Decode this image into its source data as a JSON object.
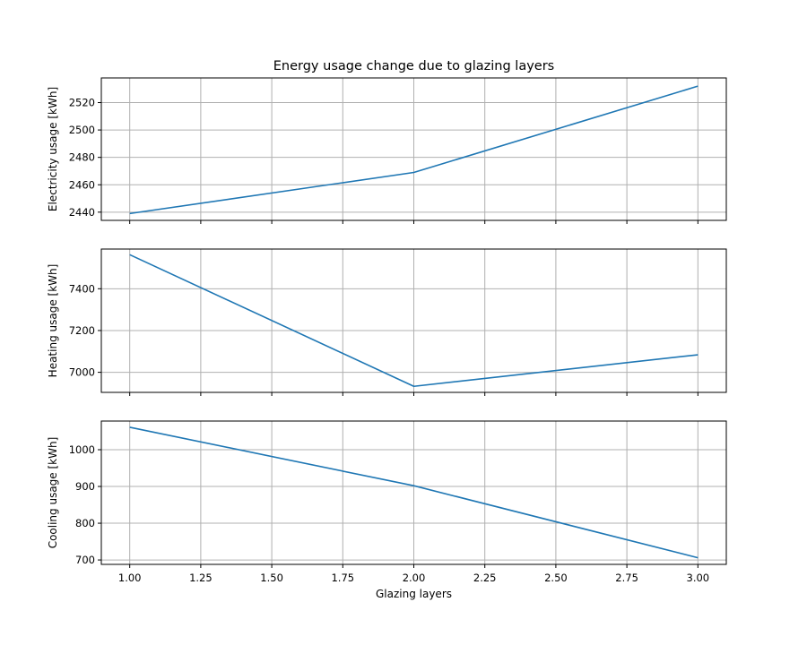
{
  "chart_data": [
    {
      "type": "line",
      "title": "Energy usage change due to glazing layers",
      "xlabel": "",
      "ylabel": "Electricity usage [kWh]",
      "x": [
        1.0,
        2.0,
        3.0
      ],
      "xlim": [
        0.9,
        3.1
      ],
      "xticks": [
        1.0,
        1.25,
        1.5,
        1.75,
        2.0,
        2.25,
        2.5,
        2.75,
        3.0
      ],
      "xtick_labels": [],
      "ylim": [
        2434,
        2538
      ],
      "yticks": [
        2440,
        2460,
        2480,
        2500,
        2520
      ],
      "ytick_labels": [
        "2440",
        "2460",
        "2480",
        "2500",
        "2520"
      ],
      "series": [
        {
          "values": [
            2439,
            2469,
            2532
          ],
          "color": "#1f77b4"
        }
      ],
      "grid": true
    },
    {
      "type": "line",
      "title": "",
      "xlabel": "",
      "ylabel": "Heating usage [kWh]",
      "x": [
        1.0,
        2.0,
        3.0
      ],
      "xlim": [
        0.9,
        3.1
      ],
      "xticks": [
        1.0,
        1.25,
        1.5,
        1.75,
        2.0,
        2.25,
        2.5,
        2.75,
        3.0
      ],
      "xtick_labels": [],
      "ylim": [
        6904,
        7590
      ],
      "yticks": [
        7000,
        7200,
        7400
      ],
      "ytick_labels": [
        "7000",
        "7200",
        "7400"
      ],
      "series": [
        {
          "values": [
            7563,
            6933,
            7084
          ],
          "color": "#1f77b4"
        }
      ],
      "grid": true
    },
    {
      "type": "line",
      "title": "",
      "xlabel": "Glazing layers",
      "ylabel": "Cooling usage [kWh]",
      "x": [
        1.0,
        2.0,
        3.0
      ],
      "xlim": [
        0.9,
        3.1
      ],
      "xticks": [
        1.0,
        1.25,
        1.5,
        1.75,
        2.0,
        2.25,
        2.5,
        2.75,
        3.0
      ],
      "xtick_labels": [
        "1.00",
        "1.25",
        "1.50",
        "1.75",
        "2.00",
        "2.25",
        "2.50",
        "2.75",
        "3.00"
      ],
      "ylim": [
        688,
        1078
      ],
      "yticks": [
        700,
        800,
        900,
        1000
      ],
      "ytick_labels": [
        "700",
        "800",
        "900",
        "1000"
      ],
      "series": [
        {
          "values": [
            1061,
            902,
            706
          ],
          "color": "#1f77b4"
        }
      ],
      "grid": true
    }
  ]
}
